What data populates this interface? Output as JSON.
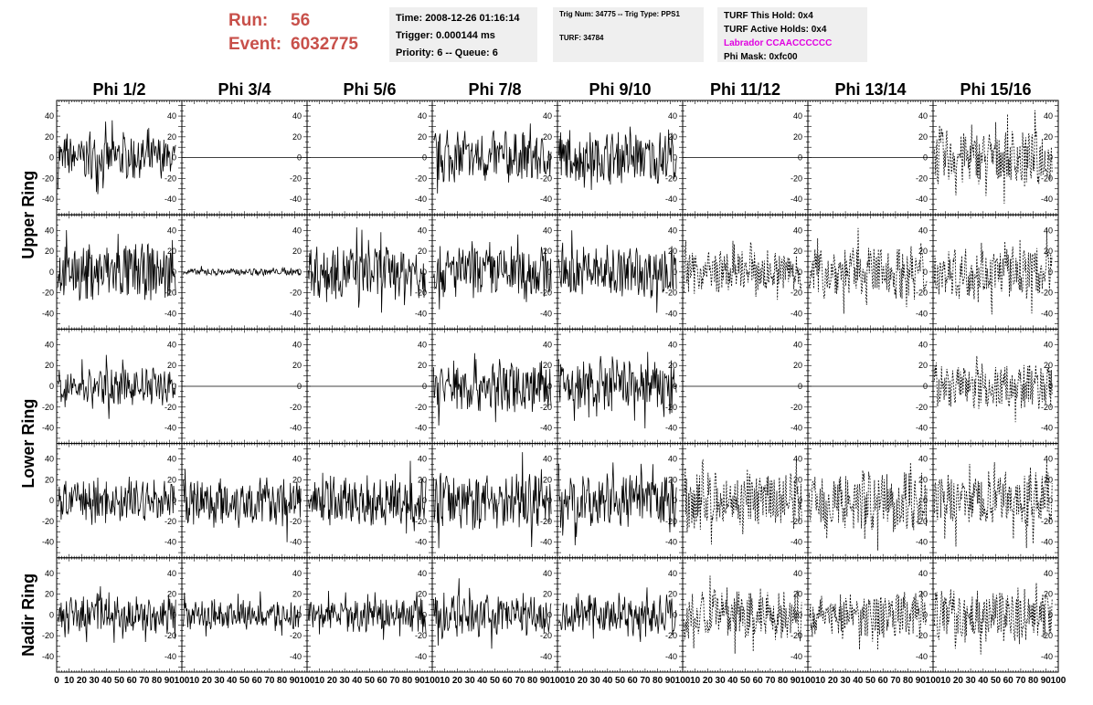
{
  "run": {
    "run_label": "Run:",
    "run_value": "56",
    "event_label": "Event:",
    "event_value": "6032775"
  },
  "info": {
    "time": "Time: 2008-12-26 01:16:14",
    "trigger": "Trigger: 0.000144 ms",
    "priority": "Priority: 6 -- Queue: 6",
    "trig": "Trig Num: 34775 -- Trig Type: PPS1",
    "turf": "TURF: 34784",
    "this_hold": "TURF This Hold: 0x4",
    "active_holds": "TURF Active Holds: 0x4",
    "labrador": "Labrador CCAACCCCCC",
    "phi_mask": "Phi Mask: 0xfc00"
  },
  "chart_data": {
    "type": "line",
    "columns": [
      "Phi 1/2",
      "Phi 3/4",
      "Phi 5/6",
      "Phi 7/8",
      "Phi 9/10",
      "Phi 11/12",
      "Phi 13/14",
      "Phi 15/16"
    ],
    "row_labels": [
      "Upper Ring",
      "Lower Ring",
      "Nadir Ring"
    ],
    "xlim": [
      0,
      100
    ],
    "ylim": [
      -55,
      55
    ],
    "y_ticks": [
      -40,
      -20,
      0,
      20,
      40
    ],
    "x_tick_labels": [
      "0",
      "10",
      "20",
      "30",
      "40",
      "50",
      "60",
      "70",
      "80",
      "90",
      "100"
    ],
    "panels": [
      [
        {
          "amp": 18,
          "dash": false
        },
        {
          "amp": 0,
          "dash": false
        },
        {
          "amp": 0,
          "dash": false
        },
        {
          "amp": 22,
          "dash": false
        },
        {
          "amp": 22,
          "dash": false
        },
        {
          "amp": 0,
          "dash": false
        },
        {
          "amp": 0,
          "dash": false
        },
        {
          "amp": 24,
          "dash": true
        }
      ],
      [
        {
          "amp": 24,
          "dash": false
        },
        {
          "amp": 3,
          "dash": false
        },
        {
          "amp": 24,
          "dash": false
        },
        {
          "amp": 22,
          "dash": false
        },
        {
          "amp": 22,
          "dash": false
        },
        {
          "amp": 18,
          "dash": true
        },
        {
          "amp": 22,
          "dash": true
        },
        {
          "amp": 22,
          "dash": true
        }
      ],
      [
        {
          "amp": 16,
          "dash": false
        },
        {
          "amp": 0,
          "dash": false
        },
        {
          "amp": 0,
          "dash": false
        },
        {
          "amp": 22,
          "dash": false
        },
        {
          "amp": 22,
          "dash": false
        },
        {
          "amp": 0,
          "dash": false
        },
        {
          "amp": 0,
          "dash": false
        },
        {
          "amp": 20,
          "dash": true
        }
      ],
      [
        {
          "amp": 18,
          "dash": false
        },
        {
          "amp": 20,
          "dash": false
        },
        {
          "amp": 20,
          "dash": false
        },
        {
          "amp": 24,
          "dash": false
        },
        {
          "amp": 22,
          "dash": false
        },
        {
          "amp": 24,
          "dash": true
        },
        {
          "amp": 26,
          "dash": true
        },
        {
          "amp": 24,
          "dash": true
        }
      ],
      [
        {
          "amp": 16,
          "dash": false
        },
        {
          "amp": 12,
          "dash": false
        },
        {
          "amp": 14,
          "dash": false
        },
        {
          "amp": 18,
          "dash": false
        },
        {
          "amp": 18,
          "dash": false
        },
        {
          "amp": 22,
          "dash": true
        },
        {
          "amp": 20,
          "dash": true
        },
        {
          "amp": 22,
          "dash": true
        }
      ]
    ]
  }
}
